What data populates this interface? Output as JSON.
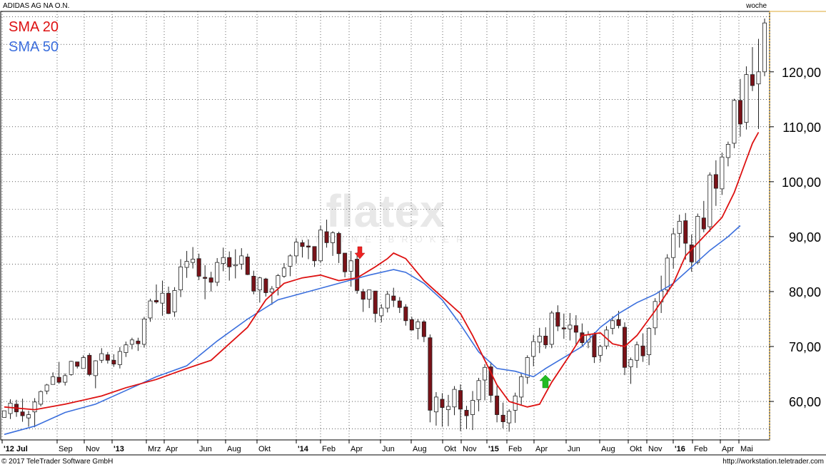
{
  "chart_data": {
    "type": "candlestick",
    "title": "ADIDAS AG NA O.N.",
    "period_label": "woche",
    "series": [
      {
        "name": "SMA 20",
        "color": "#dd1111"
      },
      {
        "name": "SMA 50",
        "color": "#3b6fdd"
      }
    ],
    "ylim": [
      53,
      131
    ],
    "yticks": [
      60,
      70,
      80,
      90,
      100,
      110,
      120
    ],
    "ytick_labels": [
      "60,00",
      "70,00",
      "80,00",
      "90,00",
      "100,00",
      "110,00",
      "120,00"
    ],
    "xticks": [
      "'12 Jul",
      "Sep",
      "Nov",
      "'13",
      "Mrz",
      "Apr",
      "Jun",
      "Aug",
      "Okt",
      "'14",
      "Feb",
      "Apr",
      "Jun",
      "Aug",
      "Okt",
      "Nov",
      "'15",
      "Feb",
      "Apr",
      "Jun",
      "Aug",
      "Okt",
      "Nov",
      "'16",
      "Feb",
      "Apr",
      "Mai"
    ],
    "sma20_points": [
      [
        0,
        59.0
      ],
      [
        5,
        58.5
      ],
      [
        10,
        59.5
      ],
      [
        16,
        61.0
      ],
      [
        20,
        62.5
      ],
      [
        25,
        64.0
      ],
      [
        30,
        66.0
      ],
      [
        34,
        67.5
      ],
      [
        37,
        70.5
      ],
      [
        40,
        73.5
      ],
      [
        43,
        78.5
      ],
      [
        46,
        81.5
      ],
      [
        49,
        82.5
      ],
      [
        52,
        83.0
      ],
      [
        55,
        82.0
      ],
      [
        58,
        82.5
      ],
      [
        61,
        84.5
      ],
      [
        63,
        86.0
      ],
      [
        64,
        87.0
      ],
      [
        66,
        86.0
      ],
      [
        69,
        82.0
      ],
      [
        72,
        79.0
      ],
      [
        75,
        76.0
      ],
      [
        77,
        72.0
      ],
      [
        79,
        67.5
      ],
      [
        81,
        63.0
      ],
      [
        83,
        60.0
      ],
      [
        86,
        59.0
      ],
      [
        88,
        59.5
      ],
      [
        90,
        63.5
      ],
      [
        93,
        68.5
      ],
      [
        95,
        72.0
      ],
      [
        98,
        72.5
      ],
      [
        100,
        70.5
      ],
      [
        102,
        70.0
      ],
      [
        104,
        72.0
      ],
      [
        107,
        76.5
      ],
      [
        110,
        81.5
      ],
      [
        112,
        86.5
      ],
      [
        115,
        90.0
      ],
      [
        118,
        93.5
      ],
      [
        120,
        98.0
      ],
      [
        122,
        104.0
      ],
      [
        123,
        107.0
      ],
      [
        124,
        109.0
      ]
    ],
    "sma50_points": [
      [
        0,
        54.0
      ],
      [
        5,
        55.5
      ],
      [
        10,
        58.0
      ],
      [
        15,
        59.5
      ],
      [
        20,
        62.0
      ],
      [
        25,
        64.5
      ],
      [
        30,
        66.5
      ],
      [
        35,
        71.0
      ],
      [
        40,
        75.0
      ],
      [
        45,
        78.5
      ],
      [
        50,
        80.0
      ],
      [
        55,
        81.5
      ],
      [
        60,
        83.0
      ],
      [
        64,
        84.0
      ],
      [
        66,
        83.5
      ],
      [
        69,
        81.5
      ],
      [
        72,
        78.5
      ],
      [
        75,
        74.0
      ],
      [
        78,
        69.0
      ],
      [
        81,
        66.0
      ],
      [
        84,
        65.5
      ],
      [
        87,
        64.5
      ],
      [
        89,
        66.0
      ],
      [
        92,
        68.0
      ],
      [
        95,
        70.0
      ],
      [
        98,
        73.5
      ],
      [
        101,
        76.0
      ],
      [
        104,
        78.0
      ],
      [
        107,
        79.5
      ],
      [
        110,
        81.5
      ],
      [
        113,
        84.5
      ],
      [
        116,
        87.5
      ],
      [
        119,
        90.0
      ],
      [
        121,
        92.0
      ]
    ],
    "ohlc": [
      [
        57.1,
        58.3,
        57.1,
        58.3
      ],
      [
        57.8,
        60.4,
        56.8,
        59.7
      ],
      [
        59.5,
        60.3,
        57.2,
        58.1
      ],
      [
        58.1,
        60.5,
        56.3,
        57.4
      ],
      [
        57.0,
        58.3,
        55.4,
        57.6
      ],
      [
        58.1,
        60.6,
        55.3,
        59.9
      ],
      [
        59.5,
        62.0,
        59.1,
        61.8
      ],
      [
        61.9,
        63.2,
        61.3,
        63.0
      ],
      [
        63.1,
        65.3,
        63.1,
        64.5
      ],
      [
        64.4,
        67.2,
        63.2,
        63.5
      ],
      [
        63.5,
        65.1,
        62.9,
        64.7
      ],
      [
        64.9,
        67.4,
        64.7,
        67.3
      ],
      [
        67.2,
        67.2,
        66.0,
        66.4
      ],
      [
        66.0,
        68.4,
        66.0,
        68.0
      ],
      [
        68.4,
        68.8,
        64.6,
        64.9
      ],
      [
        64.7,
        67.5,
        62.4,
        67.4
      ],
      [
        67.5,
        69.7,
        67.0,
        68.7
      ],
      [
        68.5,
        69.0,
        66.9,
        67.5
      ],
      [
        67.5,
        68.6,
        66.3,
        66.8
      ],
      [
        66.7,
        69.9,
        66.0,
        69.1
      ],
      [
        68.9,
        70.9,
        68.1,
        70.3
      ],
      [
        70.4,
        71.6,
        69.5,
        71.2
      ],
      [
        71.0,
        71.6,
        69.2,
        70.5
      ],
      [
        70.4,
        75.4,
        69.8,
        75.0
      ],
      [
        75.2,
        78.7,
        74.5,
        78.3
      ],
      [
        78.4,
        81.3,
        77.8,
        78.1
      ],
      [
        77.9,
        82.0,
        75.6,
        79.7
      ],
      [
        79.7,
        80.9,
        75.9,
        76.0
      ],
      [
        76.3,
        80.8,
        75.4,
        80.2
      ],
      [
        80.3,
        85.9,
        79.0,
        84.5
      ],
      [
        84.4,
        87.4,
        82.5,
        85.5
      ],
      [
        85.3,
        88.1,
        84.2,
        85.9
      ],
      [
        86.0,
        86.9,
        82.1,
        82.8
      ],
      [
        82.6,
        84.8,
        78.6,
        82.4
      ],
      [
        82.5,
        83.6,
        80.0,
        81.7
      ],
      [
        81.7,
        86.1,
        81.0,
        85.3
      ],
      [
        85.1,
        88.0,
        83.7,
        86.2
      ],
      [
        86.2,
        87.3,
        82.0,
        84.5
      ],
      [
        84.7,
        87.7,
        82.4,
        84.9
      ],
      [
        85.0,
        87.9,
        84.0,
        86.5
      ],
      [
        86.3,
        86.9,
        83.0,
        83.1
      ],
      [
        82.8,
        83.8,
        79.5,
        80.1
      ],
      [
        80.3,
        82.7,
        78.0,
        82.5
      ],
      [
        82.3,
        82.5,
        79.1,
        79.8
      ],
      [
        79.9,
        81.0,
        77.6,
        80.5
      ],
      [
        80.7,
        83.2,
        79.3,
        82.9
      ],
      [
        82.8,
        85.2,
        82.5,
        84.3
      ],
      [
        84.6,
        86.8,
        82.8,
        86.5
      ],
      [
        86.5,
        89.7,
        85.1,
        89.0
      ],
      [
        88.9,
        89.4,
        86.2,
        88.2
      ],
      [
        88.3,
        89.5,
        85.9,
        88.1
      ],
      [
        88.2,
        88.2,
        84.5,
        85.6
      ],
      [
        85.6,
        92.0,
        85.3,
        91.2
      ],
      [
        90.9,
        93.1,
        88.0,
        88.9
      ],
      [
        88.9,
        91.0,
        86.5,
        90.7
      ],
      [
        90.6,
        90.9,
        85.2,
        86.9
      ],
      [
        87.0,
        87.0,
        82.6,
        83.6
      ],
      [
        83.7,
        87.4,
        80.9,
        85.6
      ],
      [
        85.9,
        87.1,
        79.6,
        80.2
      ],
      [
        80.0,
        80.5,
        76.3,
        78.6
      ],
      [
        78.6,
        80.3,
        77.0,
        80.3
      ],
      [
        80.1,
        80.1,
        74.4,
        76.0
      ],
      [
        75.6,
        77.7,
        74.4,
        77.0
      ],
      [
        77.0,
        80.1,
        76.2,
        79.5
      ],
      [
        79.2,
        80.7,
        77.2,
        78.4
      ],
      [
        78.3,
        79.0,
        76.1,
        77.1
      ],
      [
        77.2,
        77.7,
        73.8,
        74.7
      ],
      [
        74.9,
        75.4,
        72.9,
        73.0
      ],
      [
        73.3,
        75.0,
        71.3,
        74.5
      ],
      [
        74.5,
        74.8,
        70.8,
        71.8
      ],
      [
        71.6,
        72.2,
        56.2,
        58.4
      ],
      [
        58.1,
        61.7,
        55.6,
        60.8
      ],
      [
        60.4,
        61.5,
        55.4,
        58.9
      ],
      [
        58.5,
        61.2,
        55.5,
        59.1
      ],
      [
        59.0,
        62.8,
        57.5,
        62.2
      ],
      [
        62.0,
        63.1,
        54.6,
        58.6
      ],
      [
        58.4,
        59.2,
        55.0,
        57.4
      ],
      [
        57.6,
        61.9,
        54.8,
        60.2
      ],
      [
        60.3,
        64.3,
        58.2,
        63.8
      ],
      [
        63.9,
        66.8,
        60.2,
        66.2
      ],
      [
        66.3,
        67.2,
        59.8,
        61.1
      ],
      [
        61.0,
        62.8,
        56.2,
        57.6
      ],
      [
        57.5,
        59.8,
        55.1,
        56.3
      ],
      [
        56.1,
        58.6,
        54.5,
        58.2
      ],
      [
        58.4,
        61.6,
        56.1,
        61.0
      ],
      [
        60.8,
        65.0,
        59.4,
        64.5
      ],
      [
        64.4,
        68.4,
        63.2,
        68.0
      ],
      [
        68.2,
        72.1,
        66.4,
        70.9
      ],
      [
        70.8,
        73.4,
        68.8,
        71.9
      ],
      [
        71.9,
        73.5,
        69.6,
        70.3
      ],
      [
        70.4,
        76.5,
        69.7,
        76.1
      ],
      [
        76.2,
        77.5,
        72.8,
        73.7
      ],
      [
        73.4,
        76.0,
        71.4,
        73.2
      ],
      [
        73.2,
        76.1,
        71.1,
        73.9
      ],
      [
        73.8,
        75.7,
        70.1,
        72.6
      ],
      [
        72.5,
        74.2,
        70.0,
        70.7
      ],
      [
        70.8,
        72.8,
        69.7,
        72.1
      ],
      [
        72.2,
        72.6,
        67.0,
        68.1
      ],
      [
        68.4,
        70.3,
        67.2,
        70.0
      ],
      [
        70.1,
        73.7,
        69.5,
        73.0
      ],
      [
        73.3,
        75.5,
        72.2,
        74.7
      ],
      [
        74.9,
        76.5,
        73.3,
        73.8
      ],
      [
        73.5,
        74.4,
        64.8,
        66.2
      ],
      [
        66.3,
        68.0,
        63.2,
        67.6
      ],
      [
        67.5,
        70.9,
        66.1,
        70.3
      ],
      [
        70.1,
        72.4,
        67.2,
        68.3
      ],
      [
        68.5,
        73.5,
        66.6,
        73.3
      ],
      [
        73.4,
        78.8,
        72.1,
        78.2
      ],
      [
        78.1,
        82.9,
        76.1,
        80.1
      ],
      [
        80.3,
        86.8,
        79.5,
        86.1
      ],
      [
        86.2,
        91.6,
        84.2,
        90.5
      ],
      [
        90.6,
        94.0,
        88.0,
        92.8
      ],
      [
        92.9,
        94.3,
        85.8,
        88.8
      ],
      [
        88.5,
        90.4,
        83.6,
        85.4
      ],
      [
        85.3,
        94.2,
        84.9,
        93.7
      ],
      [
        93.4,
        96.5,
        90.8,
        91.4
      ],
      [
        91.8,
        101.7,
        90.9,
        101.2
      ],
      [
        101.3,
        103.9,
        95.6,
        98.8
      ],
      [
        98.7,
        105.3,
        97.6,
        104.5
      ],
      [
        104.4,
        107.3,
        102.8,
        106.8
      ],
      [
        107.0,
        115.1,
        106.1,
        114.8
      ],
      [
        114.8,
        118.7,
        108.2,
        110.5
      ],
      [
        110.8,
        121.0,
        109.5,
        119.5
      ],
      [
        119.5,
        124.5,
        116.5,
        117.5
      ],
      [
        117.8,
        126.0,
        109.6,
        120.0
      ],
      [
        120.0,
        129.7,
        119.2,
        128.9
      ]
    ]
  },
  "footer": {
    "copyright": "© 2017 TeleTrader Software GmbH",
    "url": "http://workstation.teletrader.com"
  },
  "watermark": {
    "brand": "flatex",
    "tagline": "ONLINE BROKER"
  },
  "colors": {
    "up": "#ffffff",
    "down": "#7a1218",
    "sma20": "#dd1111",
    "sma50": "#3b6fdd",
    "arrow_sell": "#ee2222",
    "arrow_buy": "#22bb22",
    "grid": "#000000"
  }
}
